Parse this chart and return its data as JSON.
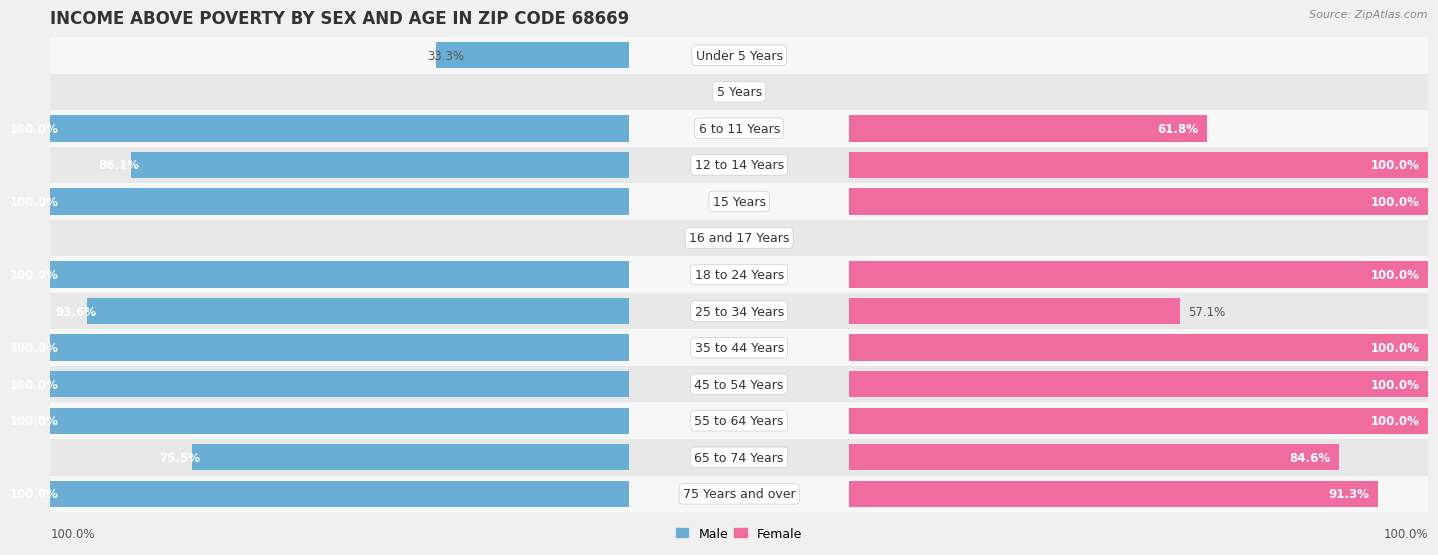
{
  "title": "INCOME ABOVE POVERTY BY SEX AND AGE IN ZIP CODE 68669",
  "source": "Source: ZipAtlas.com",
  "categories": [
    "Under 5 Years",
    "5 Years",
    "6 to 11 Years",
    "12 to 14 Years",
    "15 Years",
    "16 and 17 Years",
    "18 to 24 Years",
    "25 to 34 Years",
    "35 to 44 Years",
    "45 to 54 Years",
    "55 to 64 Years",
    "65 to 74 Years",
    "75 Years and over"
  ],
  "male_values": [
    33.3,
    0.0,
    100.0,
    86.1,
    100.0,
    0.0,
    100.0,
    93.6,
    100.0,
    100.0,
    100.0,
    75.5,
    100.0
  ],
  "female_values": [
    0.0,
    0.0,
    61.8,
    100.0,
    100.0,
    0.0,
    100.0,
    57.1,
    100.0,
    100.0,
    100.0,
    84.6,
    91.3
  ],
  "male_color_full": "#6aaed6",
  "male_color_light": "#b8d9ed",
  "female_color_full": "#f06ba0",
  "female_color_light": "#f5b8d0",
  "background_color": "#f0f0f0",
  "row_color_odd": "#f7f7f7",
  "row_color_even": "#e8e8e8",
  "bar_height": 0.72,
  "title_fontsize": 12,
  "label_fontsize": 9,
  "value_fontsize": 8.5,
  "source_fontsize": 8,
  "legend_male": "Male",
  "legend_female": "Female",
  "x_max": 100
}
